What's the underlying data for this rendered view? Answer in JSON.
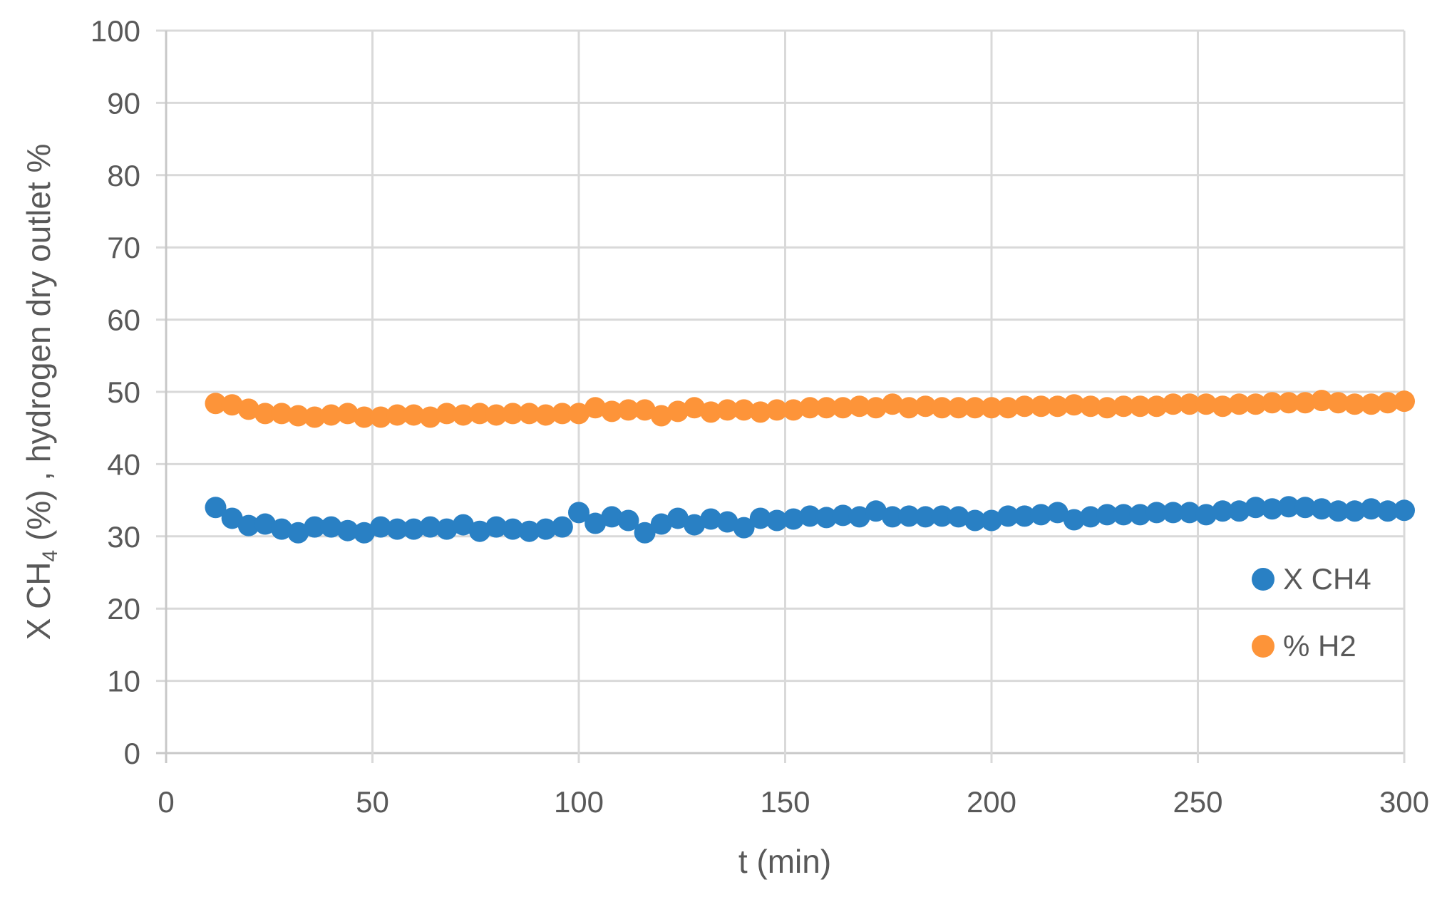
{
  "chart_data": {
    "type": "scatter",
    "title": "",
    "xlabel": "t (min)",
    "ylabel": "X CH4 (%) , hydrogen dry outlet %",
    "ylabel_parts": {
      "prefix": "X CH",
      "subscript": "4",
      "suffix": " (%) , hydrogen dry outlet %"
    },
    "xlim": [
      0,
      300
    ],
    "ylim": [
      0,
      100
    ],
    "xticks": [
      0,
      50,
      100,
      150,
      200,
      250,
      300
    ],
    "yticks": [
      0,
      10,
      20,
      30,
      40,
      50,
      60,
      70,
      80,
      90,
      100
    ],
    "grid": true,
    "legend_position": "right-inside",
    "x": [
      12,
      16,
      20,
      24,
      28,
      32,
      36,
      40,
      44,
      48,
      52,
      56,
      60,
      64,
      68,
      72,
      76,
      80,
      84,
      88,
      92,
      96,
      100,
      104,
      108,
      112,
      116,
      120,
      124,
      128,
      132,
      136,
      140,
      144,
      148,
      152,
      156,
      160,
      164,
      168,
      172,
      176,
      180,
      184,
      188,
      192,
      196,
      200,
      204,
      208,
      212,
      216,
      220,
      224,
      228,
      232,
      236,
      240,
      244,
      248,
      252,
      256,
      260,
      264,
      268,
      272,
      276,
      280,
      284,
      288,
      292,
      296,
      300
    ],
    "series": [
      {
        "name": "X CH4",
        "color": "#2980c4",
        "values": [
          34.0,
          32.5,
          31.5,
          31.7,
          31.0,
          30.5,
          31.3,
          31.3,
          30.8,
          30.5,
          31.3,
          31.0,
          31.0,
          31.3,
          31.0,
          31.6,
          30.7,
          31.3,
          31.0,
          30.7,
          31.0,
          31.3,
          33.3,
          31.8,
          32.7,
          32.2,
          30.5,
          31.7,
          32.5,
          31.6,
          32.4,
          32.0,
          31.2,
          32.5,
          32.2,
          32.4,
          32.8,
          32.6,
          32.9,
          32.7,
          33.5,
          32.7,
          32.8,
          32.7,
          32.8,
          32.7,
          32.2,
          32.2,
          32.8,
          32.8,
          33.0,
          33.3,
          32.3,
          32.7,
          33.0,
          33.0,
          33.0,
          33.3,
          33.3,
          33.3,
          33.0,
          33.5,
          33.5,
          34.0,
          33.8,
          34.1,
          34.0,
          33.8,
          33.5,
          33.5,
          33.8,
          33.5,
          33.6
        ]
      },
      {
        "name": "% H2",
        "color": "#fd9439",
        "values": [
          48.4,
          48.2,
          47.6,
          47.0,
          47.0,
          46.7,
          46.5,
          46.8,
          47.0,
          46.5,
          46.5,
          46.8,
          46.8,
          46.5,
          47.0,
          46.8,
          47.0,
          46.8,
          47.0,
          47.0,
          46.8,
          47.0,
          47.0,
          47.8,
          47.3,
          47.5,
          47.5,
          46.7,
          47.3,
          47.8,
          47.2,
          47.5,
          47.5,
          47.2,
          47.5,
          47.5,
          47.8,
          47.8,
          47.8,
          48.0,
          47.8,
          48.3,
          47.8,
          48.0,
          47.8,
          47.8,
          47.8,
          47.8,
          47.8,
          48.0,
          48.0,
          48.0,
          48.2,
          48.0,
          47.8,
          48.0,
          48.0,
          48.0,
          48.3,
          48.3,
          48.3,
          48.0,
          48.3,
          48.3,
          48.5,
          48.5,
          48.5,
          48.8,
          48.5,
          48.3,
          48.3,
          48.5,
          48.7
        ]
      }
    ]
  },
  "legend": {
    "items": [
      {
        "label": "X CH4",
        "color": "#2980c4"
      },
      {
        "label": "% H2",
        "color": "#fd9439"
      }
    ]
  },
  "style": {
    "grid_color": "#d9d9d9",
    "axis_color": "#d0d0d0",
    "text_color": "#595959"
  }
}
